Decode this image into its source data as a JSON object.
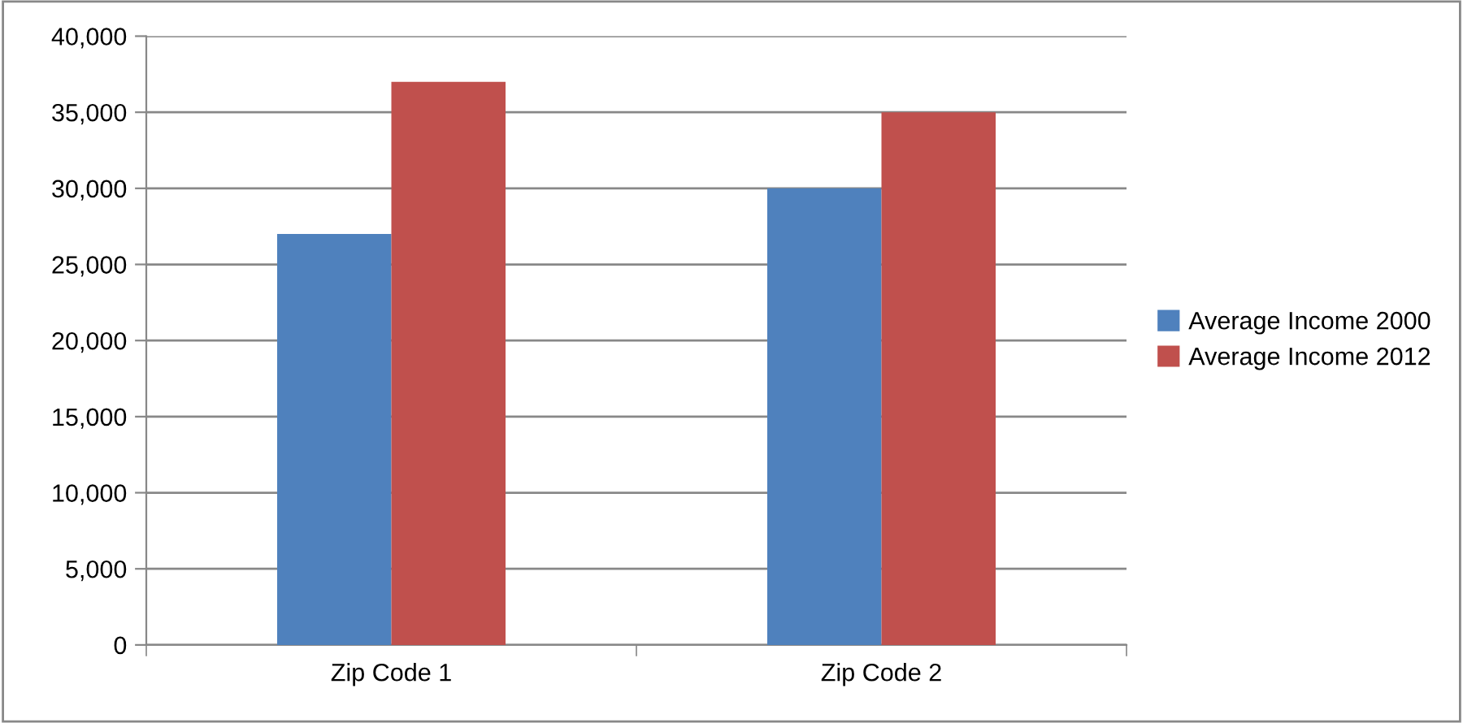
{
  "chart_data": {
    "type": "bar",
    "categories": [
      "Zip Code 1",
      "Zip Code 2"
    ],
    "series": [
      {
        "name": "Average Income 2000",
        "color": "#4f81bd",
        "values": [
          27000,
          30000
        ]
      },
      {
        "name": "Average Income 2012",
        "color": "#c0504d",
        "values": [
          37000,
          35000
        ]
      }
    ],
    "ylim": [
      0,
      40000
    ],
    "yticks": [
      {
        "value": 0,
        "label": "0"
      },
      {
        "value": 5000,
        "label": "5,000"
      },
      {
        "value": 10000,
        "label": "10,000"
      },
      {
        "value": 15000,
        "label": "15,000"
      },
      {
        "value": 20000,
        "label": "20,000"
      },
      {
        "value": 25000,
        "label": "25,000"
      },
      {
        "value": 30000,
        "label": "30,000"
      },
      {
        "value": 35000,
        "label": "35,000"
      },
      {
        "value": 40000,
        "label": "40,000"
      }
    ],
    "grid": "y",
    "legend": "right"
  }
}
